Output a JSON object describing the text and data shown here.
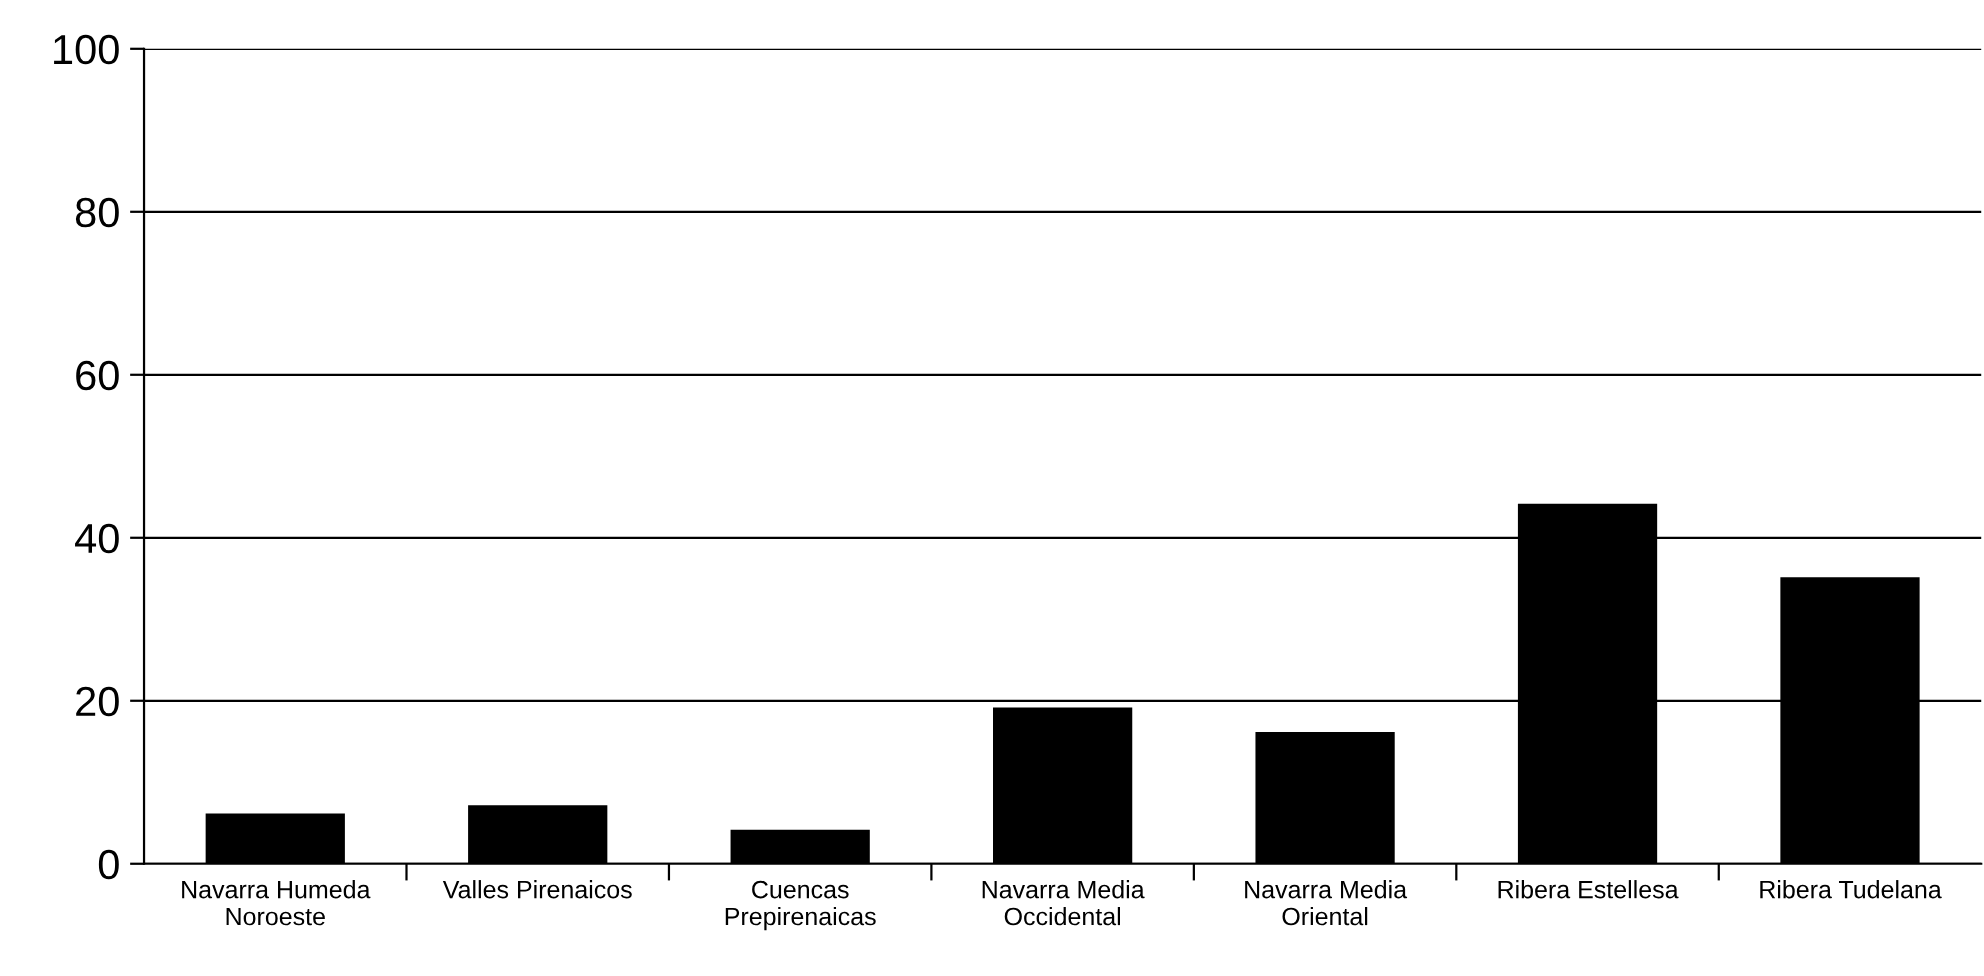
{
  "chart_data": {
    "type": "bar",
    "categories": [
      "Navarra Humeda Noroeste",
      "Valles Pirenaicos",
      "Cuencas Prepirenaicas",
      "Navarra Media Occidental",
      "Navarra Media Oriental",
      "Ribera Estellesa",
      "Ribera Tudelana"
    ],
    "values": [
      6,
      7,
      4,
      19,
      16,
      44,
      35
    ],
    "color": "#000000",
    "ylim": [
      0,
      100
    ],
    "yticks": [
      0,
      20,
      40,
      60,
      80,
      100
    ],
    "grid": "y",
    "legend": false
  }
}
